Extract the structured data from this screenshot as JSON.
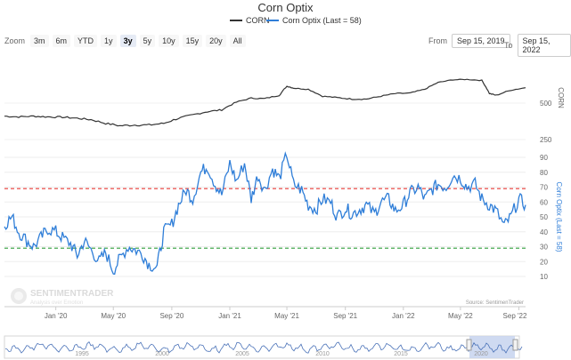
{
  "title": "Corn Optix",
  "legend": [
    {
      "name": "CORN",
      "color": "#333333"
    },
    {
      "name": "Corn Optix (Last = 58)",
      "color": "#2f7ed8"
    }
  ],
  "toolbar": {
    "zoom_label": "Zoom",
    "buttons": [
      "3m",
      "6m",
      "YTD",
      "1y",
      "3y",
      "5y",
      "10y",
      "15y",
      "20y",
      "All"
    ],
    "active": "3y"
  },
  "range": {
    "from_label": "From",
    "from_value": "Sep 15, 2019",
    "to_label": "To",
    "to_value": "Sep 15, 2022"
  },
  "watermark": {
    "name": "SENTIMENTRADER",
    "tagline": "Analysis over Emotion"
  },
  "source": "Source: SentimenTrader",
  "colors": {
    "price": "#333333",
    "optix": "#2f7ed8",
    "upper_line": "#e53935",
    "lower_line": "#2e9e3a",
    "navigator_fill": "#c7d4ee"
  },
  "chart_data": {
    "type": "line",
    "title": "Corn Optix",
    "x_tick_labels": [
      "Jan '20",
      "May '20",
      "Sep '20",
      "Jan '21",
      "May '21",
      "Sep '21",
      "Jan '22",
      "May '22",
      "Sep '22"
    ],
    "navigator_tick_labels": [
      "1995",
      "2000",
      "2005",
      "2010",
      "2015",
      "2020"
    ],
    "price_axis": {
      "tick_labels": [
        "500",
        "250"
      ],
      "label": "CORN"
    },
    "optix_axis": {
      "tick_labels": [
        "90",
        "80",
        "70",
        "60",
        "50",
        "40",
        "30",
        "20",
        "10"
      ],
      "label": "Corn Optix (Last = 58)",
      "ylim": [
        5,
        95
      ]
    },
    "reference_lines": [
      {
        "value": 69,
        "style": "dashed",
        "color": "red"
      },
      {
        "value": 29,
        "style": "dashed",
        "color": "green"
      }
    ],
    "series": [
      {
        "name": "CORN",
        "x": [
          "2019-09-15",
          "2019-10-15",
          "2019-11-15",
          "2019-12-15",
          "2020-01-15",
          "2020-02-15",
          "2020-03-15",
          "2020-04-15",
          "2020-05-15",
          "2020-06-15",
          "2020-07-15",
          "2020-08-15",
          "2020-09-15",
          "2020-10-15",
          "2020-11-15",
          "2020-12-15",
          "2021-01-15",
          "2021-02-15",
          "2021-03-15",
          "2021-04-15",
          "2021-05-01",
          "2021-05-15",
          "2021-06-15",
          "2021-07-15",
          "2021-08-15",
          "2021-09-15",
          "2021-10-15",
          "2021-11-15",
          "2021-12-15",
          "2022-01-15",
          "2022-02-15",
          "2022-03-15",
          "2022-04-15",
          "2022-05-15",
          "2022-06-15",
          "2022-07-01",
          "2022-07-15",
          "2022-08-15",
          "2022-09-15"
        ],
        "values": [
          390,
          385,
          390,
          385,
          383,
          375,
          365,
          340,
          325,
          330,
          330,
          340,
          375,
          400,
          425,
          440,
          510,
          550,
          545,
          580,
          690,
          665,
          650,
          570,
          555,
          540,
          540,
          570,
          600,
          605,
          650,
          740,
          780,
          785,
          770,
          600,
          580,
          640,
          670
        ]
      },
      {
        "name": "Corn Optix (Last = 58)",
        "x": [
          "2019-09-15",
          "2019-10-01",
          "2019-10-15",
          "2019-11-01",
          "2019-11-15",
          "2019-12-01",
          "2019-12-15",
          "2020-01-01",
          "2020-01-15",
          "2020-02-01",
          "2020-02-15",
          "2020-03-01",
          "2020-03-15",
          "2020-04-01",
          "2020-04-15",
          "2020-05-01",
          "2020-05-15",
          "2020-06-01",
          "2020-06-15",
          "2020-07-01",
          "2020-07-15",
          "2020-08-01",
          "2020-08-15",
          "2020-09-01",
          "2020-09-15",
          "2020-10-01",
          "2020-10-15",
          "2020-11-01",
          "2020-11-15",
          "2020-12-01",
          "2020-12-15",
          "2021-01-01",
          "2021-01-15",
          "2021-02-01",
          "2021-02-15",
          "2021-03-01",
          "2021-03-15",
          "2021-04-01",
          "2021-04-15",
          "2021-05-01",
          "2021-05-15",
          "2021-06-01",
          "2021-06-15",
          "2021-07-01",
          "2021-07-15",
          "2021-08-01",
          "2021-08-15",
          "2021-09-01",
          "2021-09-15",
          "2021-10-01",
          "2021-10-15",
          "2021-11-01",
          "2021-11-15",
          "2021-12-01",
          "2021-12-15",
          "2022-01-01",
          "2022-01-15",
          "2022-02-01",
          "2022-02-15",
          "2022-03-01",
          "2022-03-15",
          "2022-04-01",
          "2022-04-15",
          "2022-05-01",
          "2022-05-15",
          "2022-06-01",
          "2022-06-15",
          "2022-07-01",
          "2022-07-15",
          "2022-08-01",
          "2022-08-15",
          "2022-09-01",
          "2022-09-15"
        ],
        "values": [
          45,
          50,
          40,
          34,
          30,
          36,
          42,
          40,
          36,
          32,
          24,
          34,
          28,
          20,
          26,
          14,
          22,
          30,
          28,
          25,
          18,
          16,
          40,
          45,
          58,
          68,
          62,
          80,
          84,
          72,
          65,
          86,
          74,
          86,
          62,
          78,
          68,
          82,
          76,
          92,
          72,
          68,
          58,
          55,
          62,
          60,
          50,
          56,
          52,
          55,
          58,
          52,
          60,
          62,
          54,
          58,
          66,
          70,
          62,
          68,
          72,
          70,
          78,
          76,
          70,
          72,
          62,
          58,
          54,
          44,
          50,
          62,
          58
        ]
      }
    ]
  }
}
